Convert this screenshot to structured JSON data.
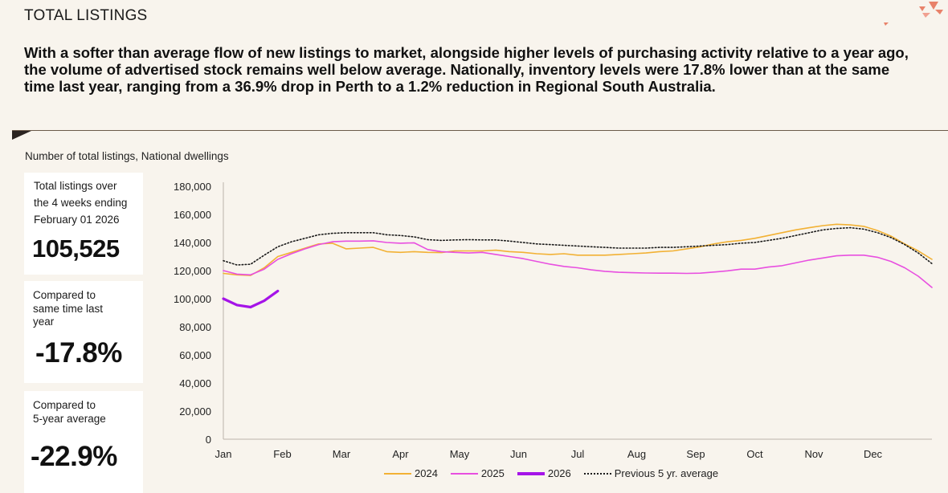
{
  "header": {
    "title": "TOTAL LISTINGS",
    "intro": "With a softer than average flow of new listings to market, alongside higher levels of purchasing activity relative to a year ago, the volume of advertised stock remains well below average. Nationally, inventory levels were 17.8% lower than at the same time last year, ranging from a 36.9% drop in Perth to a 1.2% reduction in Regional South Australia."
  },
  "chart_subtitle": "Number of total listings, National dwellings",
  "stats": [
    {
      "label_lines": [
        "Total listings over",
        "the 4 weeks ending",
        "February 01 2026"
      ],
      "value": "105,525"
    },
    {
      "label_lines": [
        "Compared to",
        "same time last",
        "year"
      ],
      "value": "-17.8%"
    },
    {
      "label_lines": [
        "Compared to",
        "5-year average"
      ],
      "value": "-22.9%"
    }
  ],
  "colors": {
    "background": "#f8f4ed",
    "series_2024": "#f2b134",
    "series_2025": "#e84fe0",
    "series_2026": "#a513e8",
    "series_avg": "#1a1a1a",
    "accent": "#e8826a"
  },
  "chart_data": {
    "type": "line",
    "title": "",
    "ylim": [
      0,
      180000
    ],
    "y_ticks": [
      "0",
      "20,000",
      "40,000",
      "60,000",
      "80,000",
      "100,000",
      "120,000",
      "140,000",
      "160,000",
      "180,000"
    ],
    "x_ticks": [
      "Jan",
      "Feb",
      "Mar",
      "Apr",
      "May",
      "Jun",
      "Jul",
      "Aug",
      "Sep",
      "Oct",
      "Nov",
      "Dec"
    ],
    "x_unit": "week",
    "x_range": [
      0,
      52
    ],
    "grid": false,
    "legend_position": "bottom",
    "series": [
      {
        "name": "2024",
        "style": "solid",
        "x": [
          0,
          1,
          2,
          3,
          4,
          5,
          6,
          7,
          8,
          9,
          10,
          11,
          12,
          13,
          14,
          15,
          16,
          17,
          18,
          19,
          20,
          21,
          22,
          23,
          24,
          25,
          26,
          27,
          28,
          29,
          30,
          31,
          32,
          33,
          34,
          35,
          36,
          37,
          38,
          39,
          40,
          41,
          42,
          43,
          44,
          45,
          46,
          47,
          48,
          49,
          50,
          51,
          52
        ],
        "values": [
          118000,
          117000,
          116500,
          122000,
          130000,
          133000,
          136000,
          139000,
          139500,
          135500,
          136000,
          136500,
          133500,
          133000,
          133500,
          133000,
          132800,
          134000,
          134000,
          134000,
          134500,
          133500,
          133000,
          132000,
          131500,
          132000,
          131000,
          131000,
          131000,
          131500,
          132000,
          132500,
          133500,
          134000,
          135500,
          137000,
          139000,
          140500,
          141500,
          143000,
          145000,
          147000,
          149000,
          150500,
          152000,
          153000,
          152500,
          151500,
          148500,
          144500,
          139000,
          134000,
          128000
        ]
      },
      {
        "name": "2025",
        "style": "solid",
        "x": [
          0,
          1,
          2,
          3,
          4,
          5,
          6,
          7,
          8,
          9,
          10,
          11,
          12,
          13,
          14,
          15,
          16,
          17,
          18,
          19,
          20,
          21,
          22,
          23,
          24,
          25,
          26,
          27,
          28,
          29,
          30,
          31,
          32,
          33,
          34,
          35,
          36,
          37,
          38,
          39,
          40,
          41,
          42,
          43,
          44,
          45,
          46,
          47,
          48,
          49,
          50,
          51,
          52
        ],
        "values": [
          120000,
          117500,
          117000,
          121000,
          128000,
          132000,
          135500,
          138500,
          140500,
          141000,
          141000,
          141200,
          140000,
          139500,
          139800,
          135000,
          133500,
          133000,
          132500,
          133000,
          131500,
          130000,
          128500,
          126500,
          124500,
          123000,
          122000,
          120500,
          119500,
          118800,
          118500,
          118300,
          118200,
          118200,
          118000,
          118200,
          119000,
          119800,
          121000,
          121000,
          122500,
          123500,
          125500,
          127500,
          129000,
          130500,
          131000,
          131000,
          129500,
          126500,
          122000,
          116000,
          108000
        ]
      },
      {
        "name": "2026",
        "style": "solid-thick",
        "x": [
          0,
          1,
          2,
          3,
          4
        ],
        "values": [
          100000,
          95500,
          94000,
          98500,
          105500
        ]
      },
      {
        "name": "Previous 5 yr. average",
        "style": "dotted",
        "x": [
          0,
          1,
          2,
          3,
          4,
          5,
          6,
          7,
          8,
          9,
          10,
          11,
          12,
          13,
          14,
          15,
          16,
          17,
          18,
          19,
          20,
          21,
          22,
          23,
          24,
          25,
          26,
          27,
          28,
          29,
          30,
          31,
          32,
          33,
          34,
          35,
          36,
          37,
          38,
          39,
          40,
          41,
          42,
          43,
          44,
          45,
          46,
          47,
          48,
          49,
          50,
          51,
          52
        ],
        "values": [
          127000,
          124000,
          124500,
          131000,
          137000,
          140500,
          143000,
          145500,
          146500,
          147000,
          147000,
          147000,
          145500,
          145000,
          144000,
          142000,
          141500,
          141800,
          142000,
          141800,
          141800,
          141000,
          140000,
          139000,
          138500,
          138000,
          137500,
          137000,
          136500,
          136000,
          136000,
          136000,
          136500,
          136500,
          137000,
          137500,
          138000,
          138500,
          139500,
          140000,
          141500,
          143000,
          145000,
          147000,
          149000,
          150000,
          150500,
          149500,
          147000,
          143500,
          138500,
          132500,
          125000
        ]
      }
    ]
  }
}
